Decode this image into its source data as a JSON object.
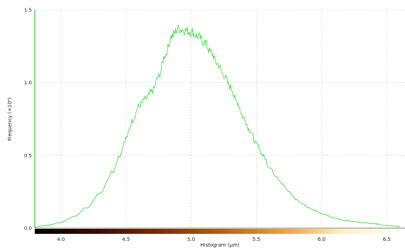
{
  "chart_data": {
    "type": "line",
    "xlabel": "Histogram (µm)",
    "ylabel": "Frequency (×10⁶)",
    "xlim": [
      3.8,
      6.64
    ],
    "ylim": [
      0,
      1.5
    ],
    "x_ticks": [
      "4.0",
      "4.5",
      "5.0",
      "5.5",
      "6.0",
      "6.5"
    ],
    "x_tick_values": [
      4.0,
      4.5,
      5.0,
      5.5,
      6.0,
      6.5
    ],
    "y_ticks": [
      "0.0",
      "0.5",
      "1.0",
      "1.5"
    ],
    "y_tick_values": [
      0.0,
      0.5,
      1.0,
      1.5
    ],
    "grid": true,
    "series_color": "#33dd33",
    "axis_color": "#33cc33",
    "colorbar": {
      "stops": [
        "#000000",
        "#3a0a00",
        "#7a2a00",
        "#c05a00",
        "#f0a020",
        "#fff0c8",
        "#ffffff"
      ]
    },
    "series": [
      {
        "x": [
          3.8,
          3.9,
          4.0,
          4.1,
          4.2,
          4.3,
          4.4,
          4.45,
          4.5,
          4.55,
          4.6,
          4.65,
          4.7,
          4.75,
          4.8,
          4.85,
          4.9,
          4.95,
          5.0,
          5.05,
          5.1,
          5.15,
          5.2,
          5.25,
          5.3,
          5.35,
          5.4,
          5.45,
          5.5,
          5.55,
          5.6,
          5.65,
          5.7,
          5.75,
          5.8,
          5.85,
          5.9,
          5.95,
          6.0,
          6.1,
          6.2,
          6.3,
          6.4,
          6.5,
          6.6
        ],
        "values": [
          0.01,
          0.02,
          0.04,
          0.08,
          0.14,
          0.24,
          0.39,
          0.5,
          0.62,
          0.74,
          0.84,
          0.89,
          0.94,
          1.04,
          1.19,
          1.32,
          1.37,
          1.36,
          1.35,
          1.32,
          1.28,
          1.21,
          1.13,
          1.05,
          0.97,
          0.87,
          0.76,
          0.67,
          0.58,
          0.5,
          0.42,
          0.36,
          0.3,
          0.25,
          0.2,
          0.17,
          0.14,
          0.12,
          0.1,
          0.07,
          0.05,
          0.04,
          0.03,
          0.02,
          0.01
        ]
      }
    ]
  }
}
